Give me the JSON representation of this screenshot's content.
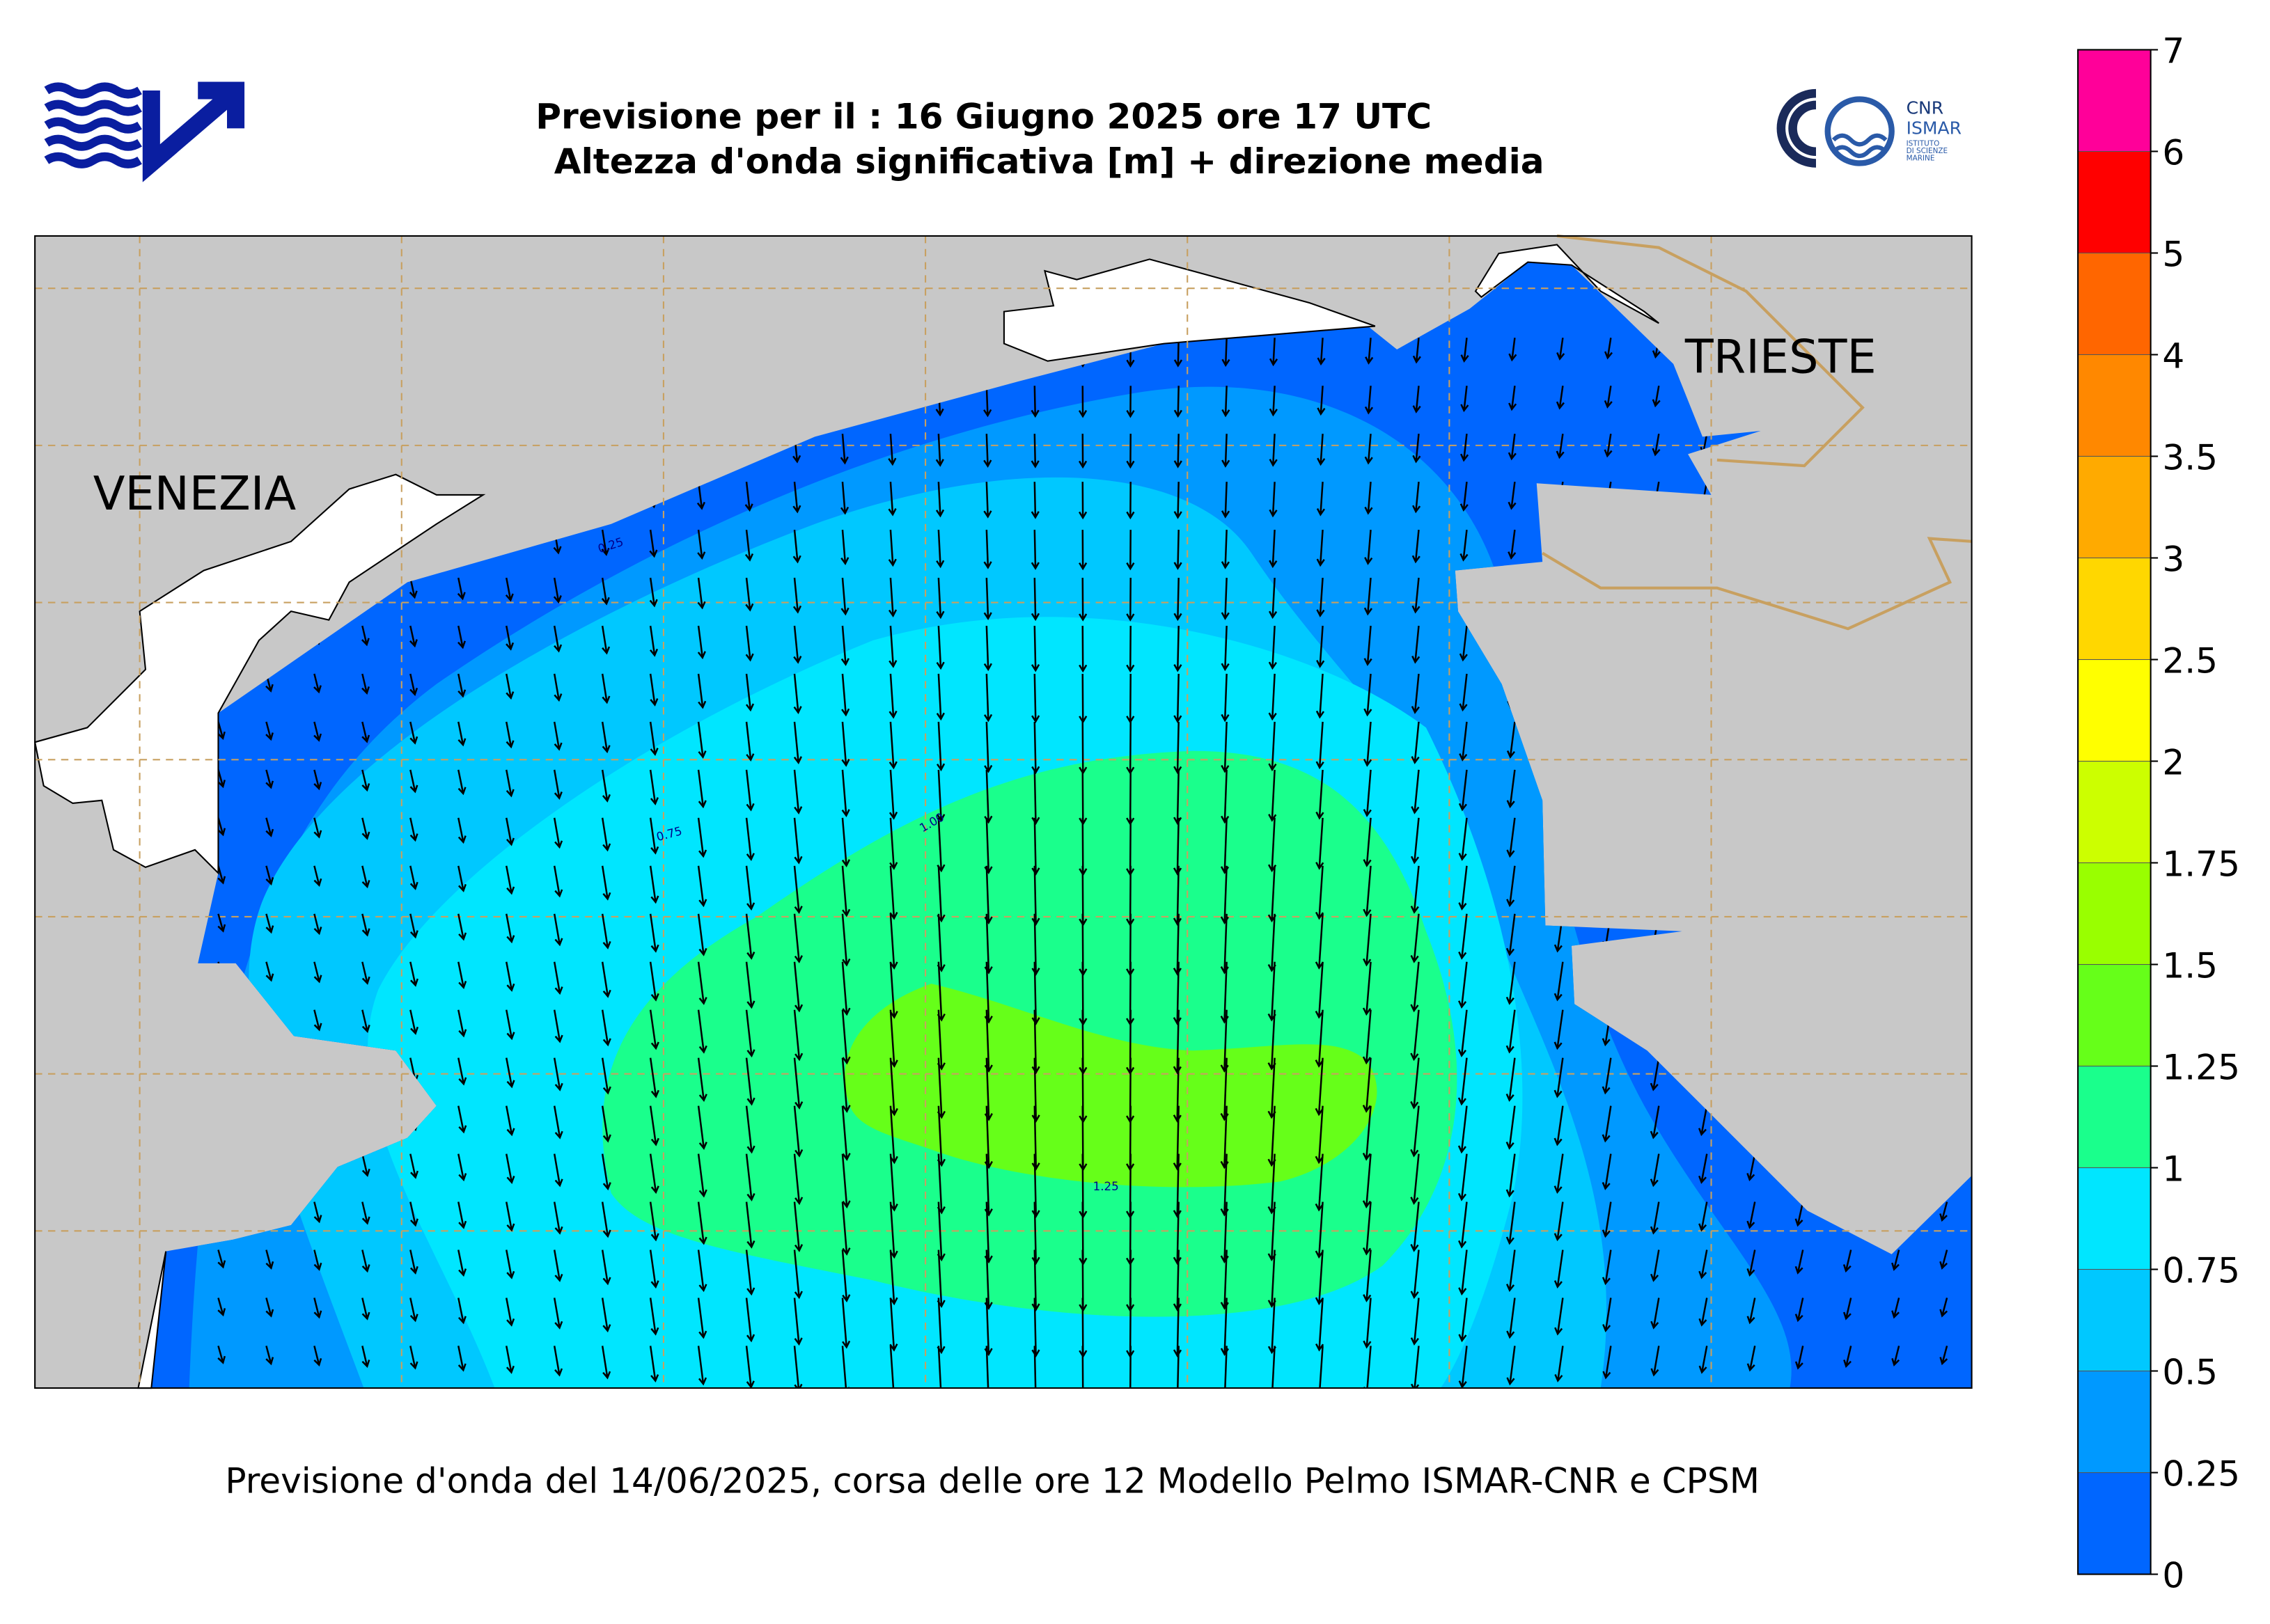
{
  "header": {
    "title_line1": "Previsione per il : 16 Giugno 2025 ore 17 UTC",
    "title_line2": "Altezza d'onda significativa [m] + direzione media",
    "logo_right": {
      "line1": "CNR",
      "line2": "ISMAR",
      "line3": "ISTITUTO",
      "line4": "DI SCIENZE",
      "line5": "MARINE"
    }
  },
  "map": {
    "city_labels": [
      "VENEZIA",
      "TRIESTE"
    ],
    "contour_labels": [
      "0.25",
      "0.75",
      "1.00",
      "1.25"
    ]
  },
  "footer": "Previsione d'onda del 14/06/2025, corsa delle ore 12 Modello Pelmo ISMAR-CNR e CPSM",
  "colorbar": {
    "ticks": [
      0,
      0.25,
      0.5,
      0.75,
      1,
      1.25,
      1.5,
      1.75,
      2,
      2.5,
      3,
      3.5,
      4,
      5,
      6,
      7
    ],
    "colors": [
      "#0066ff",
      "#0099ff",
      "#00c8ff",
      "#00e6ff",
      "#1aff8c",
      "#66ff19",
      "#99ff00",
      "#ccff00",
      "#ffff00",
      "#ffd700",
      "#ffaa00",
      "#ff8800",
      "#ff6600",
      "#ff0000",
      "#ff0099"
    ]
  }
}
